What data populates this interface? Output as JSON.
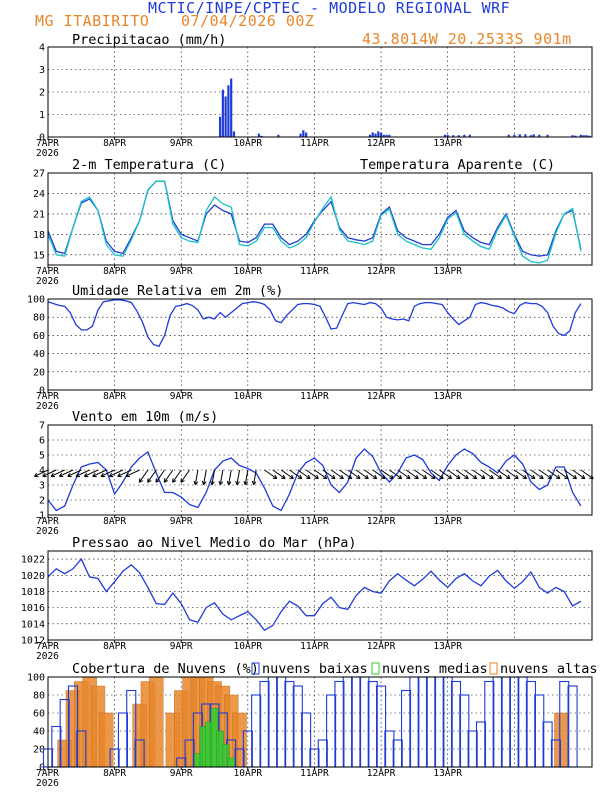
{
  "header": {
    "title": "MCTIC/INPE/CPTEC - MODELO REGIONAL WRF",
    "location": "MG ITABIRITO",
    "run": "07/04/2026 00Z",
    "coords": "43.8014W 20.2533S 901m"
  },
  "colors": {
    "header_blue": "#1f3bd9",
    "header_orange": "#e8862a",
    "series_blue": "#1f3bd9",
    "series_cyan": "#17c3c9",
    "green": "#33cc33",
    "orange": "#e8862a"
  },
  "x_ticks": [
    "7APR",
    "8APR",
    "9APR",
    "10APR",
    "11APR",
    "12APR",
    "13APR"
  ],
  "x_year": "2026",
  "chart_data": [
    {
      "type": "bar",
      "title": "Precipitacao (mm/h)",
      "ylim": [
        0,
        4
      ],
      "yticks": [
        0,
        1,
        2,
        3,
        4
      ],
      "hours": [
        62,
        63,
        64,
        65,
        66,
        67,
        76,
        77,
        83,
        91,
        92,
        93,
        116,
        117,
        118,
        119,
        120,
        121,
        122,
        123,
        143,
        144,
        146,
        148,
        150,
        152,
        166,
        168,
        170,
        172,
        174,
        175,
        177,
        180,
        189,
        190,
        192,
        193,
        194,
        195
      ],
      "values": [
        0.9,
        2.1,
        1.8,
        2.3,
        2.6,
        0.25,
        0.15,
        0.05,
        0.1,
        0.15,
        0.3,
        0.2,
        0.1,
        0.2,
        0.15,
        0.25,
        0.2,
        0.1,
        0.1,
        0.1,
        0.1,
        0.1,
        0.08,
        0.08,
        0.1,
        0.1,
        0.1,
        0.1,
        0.12,
        0.12,
        0.08,
        0.12,
        0.1,
        0.1,
        0.08,
        0.06,
        0.1,
        0.08,
        0.08,
        0.06
      ]
    },
    {
      "type": "line",
      "title": "2-m Temperatura (C)",
      "legend": "Temperatura Aparente (C)",
      "ylim": [
        13.5,
        27
      ],
      "yticks": [
        15,
        18,
        21,
        24,
        27
      ],
      "series": [
        {
          "name": "",
          "color": "#1f3bd9",
          "hours": [
            0,
            3,
            6,
            9,
            12,
            15,
            18,
            21,
            24,
            27,
            30,
            33,
            36,
            39,
            42,
            45,
            48,
            51,
            54,
            57,
            60,
            63,
            66,
            69,
            72,
            75,
            78,
            81,
            84,
            87,
            90,
            93,
            96,
            99,
            102,
            105,
            108,
            111,
            114,
            117,
            120,
            123,
            126,
            129,
            132,
            135,
            138,
            141,
            144,
            147,
            150,
            153,
            156,
            159,
            162,
            165,
            168,
            171,
            174,
            177,
            180,
            183,
            186,
            189,
            192
          ],
          "values": [
            18.5,
            15.5,
            15.2,
            19,
            22.6,
            23.2,
            21.5,
            17,
            15.5,
            15.2,
            17.5,
            20,
            24.5,
            25.8,
            25.8,
            20,
            18,
            17.5,
            17,
            21,
            22.3,
            21.5,
            21,
            17,
            16.8,
            17.5,
            19.5,
            19.5,
            17.5,
            16.5,
            17,
            18,
            20,
            21.5,
            22.8,
            19,
            17.5,
            17.2,
            17,
            17.5,
            21,
            22,
            18.5,
            17.5,
            17,
            16.5,
            16.5,
            18,
            20.5,
            21.5,
            18.5,
            17.5,
            16.8,
            16.5,
            19,
            21,
            18,
            15.5,
            15,
            14.8,
            15,
            18.5,
            21,
            21.5,
            15.8
          ]
        },
        {
          "name": "Temperatura Aparente (C)",
          "color": "#17c3c9",
          "hours": [
            0,
            3,
            6,
            9,
            12,
            15,
            18,
            21,
            24,
            27,
            30,
            33,
            36,
            39,
            42,
            45,
            48,
            51,
            54,
            57,
            60,
            63,
            66,
            69,
            72,
            75,
            78,
            81,
            84,
            87,
            90,
            93,
            96,
            99,
            102,
            105,
            108,
            111,
            114,
            117,
            120,
            123,
            126,
            129,
            132,
            135,
            138,
            141,
            144,
            147,
            150,
            153,
            156,
            159,
            162,
            165,
            168,
            171,
            174,
            177,
            180,
            183,
            186,
            189,
            192
          ],
          "values": [
            18,
            15,
            14.8,
            19,
            22.8,
            23.5,
            21.5,
            16.5,
            15,
            14.8,
            17.2,
            20,
            24.5,
            25.8,
            25.8,
            19.5,
            17.5,
            17,
            16.8,
            21.5,
            23.5,
            22.5,
            22,
            16.5,
            16.3,
            17,
            19,
            19,
            17,
            16,
            16.5,
            17.5,
            19.8,
            21.8,
            23.5,
            18.7,
            17,
            16.8,
            16.5,
            17,
            20.8,
            21.7,
            18,
            17,
            16.5,
            16,
            15.8,
            17.5,
            20.2,
            21.2,
            18,
            17,
            16.2,
            15.8,
            18.7,
            20.8,
            17.8,
            14.8,
            14,
            13.8,
            14.2,
            18.2,
            21,
            21.8,
            15.5
          ]
        }
      ]
    },
    {
      "type": "line",
      "title": "Umidade Relativa em 2m (%)",
      "ylim": [
        0,
        100
      ],
      "yticks": [
        0,
        20,
        40,
        60,
        80,
        100
      ],
      "series": [
        {
          "name": "",
          "color": "#1f3bd9",
          "hours": [
            0,
            2,
            4,
            6,
            8,
            10,
            12,
            14,
            16,
            18,
            20,
            22,
            24,
            26,
            28,
            30,
            32,
            34,
            36,
            38,
            40,
            42,
            44,
            46,
            48,
            50,
            52,
            54,
            56,
            58,
            60,
            62,
            64,
            66,
            68,
            70,
            72,
            74,
            76,
            78,
            80,
            82,
            84,
            86,
            88,
            90,
            92,
            94,
            96,
            98,
            100,
            102,
            104,
            106,
            108,
            110,
            112,
            114,
            116,
            118,
            120,
            122,
            124,
            126,
            128,
            130,
            132,
            134,
            136,
            138,
            140,
            142,
            144,
            146,
            148,
            150,
            152,
            154,
            156,
            158,
            160,
            162,
            164,
            166,
            168,
            170,
            172,
            174,
            176,
            178,
            180,
            182,
            184,
            186,
            188,
            190,
            192
          ],
          "values": [
            97,
            95,
            93,
            92,
            85,
            72,
            66,
            66,
            70,
            88,
            97,
            98,
            99,
            99,
            98,
            96,
            87,
            75,
            58,
            50,
            48,
            60,
            82,
            92,
            93,
            95,
            93,
            88,
            78,
            80,
            78,
            85,
            80,
            85,
            90,
            95,
            96,
            97,
            96,
            94,
            88,
            76,
            74,
            82,
            88,
            94,
            95,
            95,
            94,
            92,
            80,
            67,
            68,
            82,
            95,
            96,
            95,
            94,
            96,
            95,
            90,
            80,
            78,
            77,
            78,
            76,
            92,
            95,
            96,
            96,
            95,
            94,
            85,
            78,
            72,
            76,
            80,
            94,
            96,
            95,
            93,
            92,
            90,
            86,
            84,
            93,
            96,
            95,
            95,
            92,
            85,
            70,
            62,
            60,
            65,
            85,
            95
          ]
        }
      ]
    },
    {
      "type": "line",
      "title": "Vento em 10m (m/s)",
      "ylim": [
        1,
        7
      ],
      "yticks": [
        1,
        2,
        3,
        4,
        5,
        6,
        7
      ],
      "series": [
        {
          "name": "",
          "color": "#1f3bd9",
          "hours": [
            0,
            3,
            6,
            9,
            12,
            15,
            18,
            21,
            24,
            27,
            30,
            33,
            36,
            39,
            42,
            45,
            48,
            51,
            54,
            57,
            60,
            63,
            66,
            69,
            72,
            75,
            78,
            81,
            84,
            87,
            90,
            93,
            96,
            99,
            102,
            105,
            108,
            111,
            114,
            117,
            120,
            123,
            126,
            129,
            132,
            135,
            138,
            141,
            144,
            147,
            150,
            153,
            156,
            159,
            162,
            165,
            168,
            171,
            174,
            177,
            180,
            183,
            186,
            189,
            192
          ],
          "values": [
            2,
            1.3,
            1.6,
            3,
            4.2,
            4.4,
            4.5,
            4,
            2.4,
            3.2,
            4.2,
            4.8,
            5.2,
            3.8,
            2.5,
            2.5,
            2.2,
            1.7,
            1.5,
            2.5,
            4,
            4.6,
            4.8,
            4.3,
            4.1,
            3.8,
            2.8,
            1.6,
            1.3,
            2.4,
            3.8,
            4.5,
            4.8,
            4.3,
            3,
            2.5,
            3.2,
            4.8,
            5.4,
            4.9,
            3.8,
            3.2,
            3.8,
            4.8,
            5,
            4.7,
            3.8,
            3.3,
            4.3,
            5,
            5.4,
            5.1,
            4.5,
            4.2,
            3.8,
            4.6,
            5,
            4.4,
            3.2,
            2.7,
            3,
            4.2,
            4.2,
            2.5,
            1.6
          ]
        }
      ]
    },
    {
      "type": "line",
      "title": "Pressao ao Nivel Medio do Mar (hPa)",
      "ylim": [
        1012,
        1023
      ],
      "yticks": [
        1012,
        1014,
        1016,
        1018,
        1020,
        1022
      ],
      "series": [
        {
          "name": "",
          "color": "#1f3bd9",
          "hours": [
            0,
            3,
            6,
            9,
            12,
            15,
            18,
            21,
            24,
            27,
            30,
            33,
            36,
            39,
            42,
            45,
            48,
            51,
            54,
            57,
            60,
            63,
            66,
            69,
            72,
            75,
            78,
            81,
            84,
            87,
            90,
            93,
            96,
            99,
            102,
            105,
            108,
            111,
            114,
            117,
            120,
            123,
            126,
            129,
            132,
            135,
            138,
            141,
            144,
            147,
            150,
            153,
            156,
            159,
            162,
            165,
            168,
            171,
            174,
            177,
            180,
            183,
            186,
            189,
            192
          ],
          "values": [
            1019.8,
            1020.8,
            1020.2,
            1020.8,
            1022,
            1019.8,
            1019.6,
            1018,
            1019.2,
            1020.5,
            1021.3,
            1020.3,
            1018.5,
            1016.5,
            1016.4,
            1017.8,
            1016.5,
            1014.5,
            1014.2,
            1016,
            1016.6,
            1015.2,
            1014.5,
            1015,
            1015.5,
            1014.5,
            1013.2,
            1013.8,
            1015.5,
            1016.8,
            1016.2,
            1015,
            1015,
            1016.5,
            1017.3,
            1016,
            1015.8,
            1017.5,
            1018.5,
            1018,
            1017.8,
            1019.3,
            1020.2,
            1019.4,
            1018.7,
            1019.5,
            1020.5,
            1019.4,
            1018.5,
            1019.6,
            1020.2,
            1019.3,
            1018.7,
            1019.9,
            1020.6,
            1019.3,
            1018.4,
            1019.2,
            1020.4,
            1018.5,
            1017.8,
            1018.5,
            1018,
            1016.2,
            1016.8
          ]
        }
      ]
    },
    {
      "type": "bar",
      "title": "Cobertura de Nuvens (%)",
      "legend": [
        "nuvens baixas",
        "nuvens medias",
        "nuvens altas"
      ],
      "ylim": [
        0,
        100
      ],
      "yticks": [
        0,
        20,
        40,
        60,
        80,
        100
      ],
      "series": [
        {
          "name": "nuvens baixas",
          "color": "#1f3bd9",
          "hours": [
            0,
            3,
            6,
            9,
            12,
            15,
            18,
            21,
            24,
            27,
            30,
            33,
            36,
            39,
            42,
            45,
            48,
            51,
            54,
            57,
            60,
            63,
            66,
            69,
            72,
            75,
            78,
            81,
            84,
            87,
            90,
            93,
            96,
            99,
            102,
            105,
            108,
            111,
            114,
            117,
            120,
            123,
            126,
            129,
            132,
            135,
            138,
            141,
            144,
            147,
            150,
            153,
            156,
            159,
            162,
            165,
            168,
            171,
            174,
            177,
            180,
            183,
            186,
            189,
            192
          ],
          "values": [
            20,
            45,
            75,
            90,
            40,
            0,
            0,
            0,
            20,
            60,
            85,
            30,
            0,
            0,
            0,
            0,
            10,
            30,
            60,
            70,
            70,
            60,
            30,
            20,
            40,
            80,
            95,
            100,
            100,
            95,
            90,
            60,
            20,
            30,
            80,
            95,
            100,
            100,
            100,
            95,
            90,
            40,
            30,
            85,
            100,
            100,
            100,
            100,
            100,
            95,
            80,
            40,
            50,
            95,
            100,
            100,
            100,
            100,
            95,
            80,
            50,
            30,
            95,
            90,
            0
          ]
        },
        {
          "name": "nuvens medias",
          "color": "#33cc33",
          "hours": [
            54,
            56,
            58,
            60,
            62,
            64,
            66
          ],
          "values": [
            15,
            45,
            50,
            65,
            40,
            25,
            10
          ]
        },
        {
          "name": "nuvens altas",
          "color": "#e8862a",
          "hours": [
            6,
            9,
            12,
            15,
            18,
            21,
            33,
            36,
            39,
            45,
            48,
            51,
            54,
            57,
            60,
            63,
            66,
            69,
            185
          ],
          "values": [
            30,
            85,
            95,
            100,
            90,
            60,
            70,
            95,
            100,
            60,
            85,
            100,
            100,
            100,
            95,
            90,
            80,
            60,
            60
          ]
        }
      ]
    }
  ]
}
